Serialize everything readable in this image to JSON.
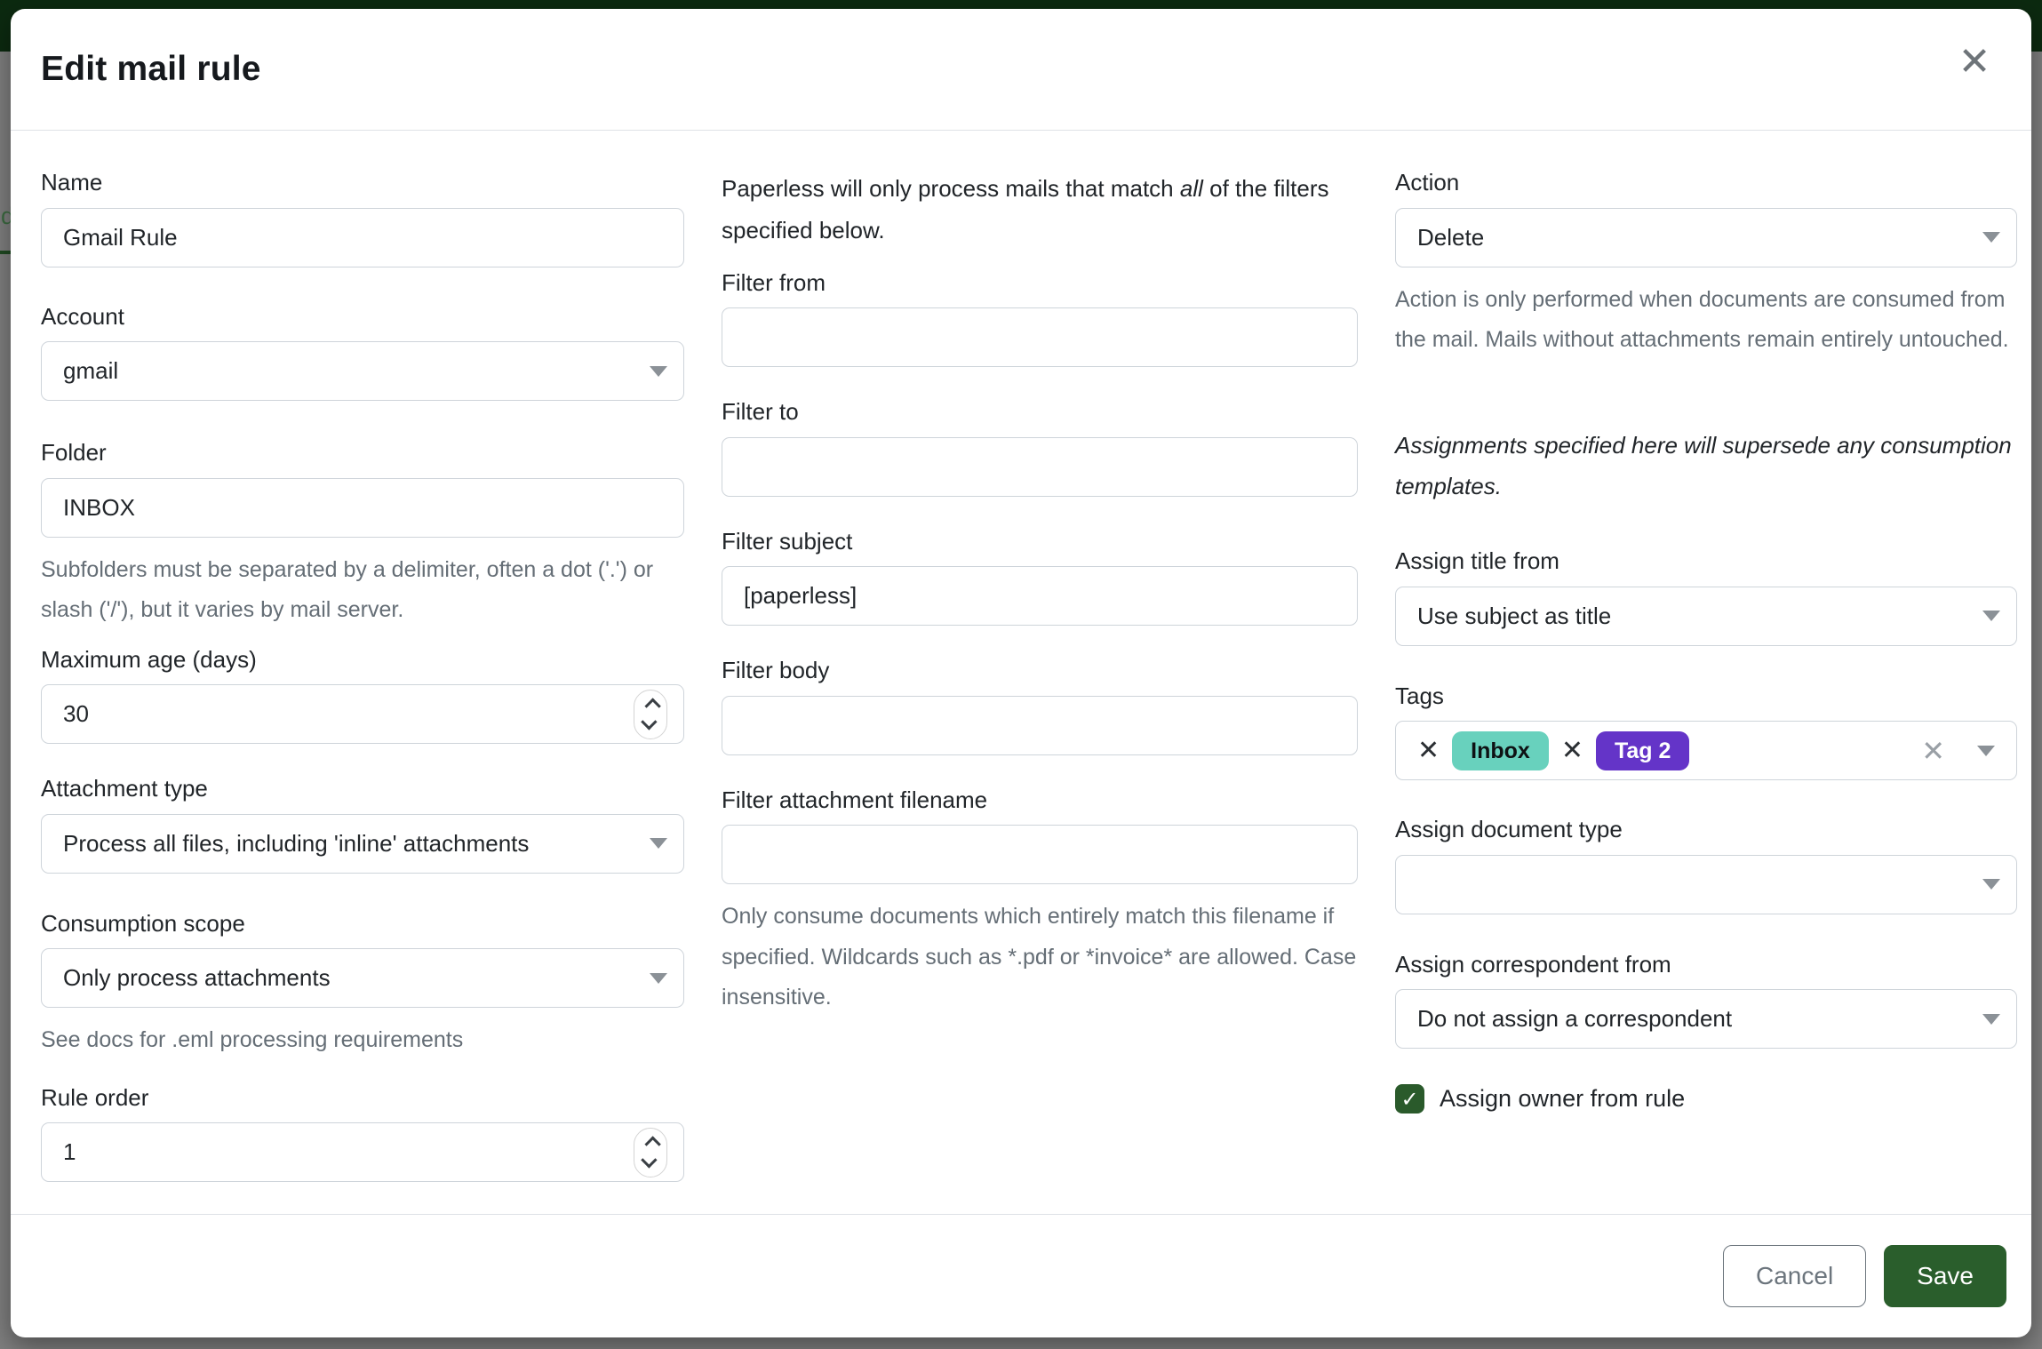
{
  "backdrop": {
    "partial_text": "d"
  },
  "modal": {
    "title": "Edit mail rule",
    "close_icon": "✕"
  },
  "columns": {
    "left": {
      "name": {
        "label": "Name",
        "value": "Gmail Rule"
      },
      "account": {
        "label": "Account",
        "value": "gmail"
      },
      "folder": {
        "label": "Folder",
        "value": "INBOX",
        "help": "Subfolders must be separated by a delimiter, often a dot ('.') or slash ('/'), but it varies by mail server."
      },
      "max_age": {
        "label": "Maximum age (days)",
        "value": "30"
      },
      "attachment_type": {
        "label": "Attachment type",
        "value": "Process all files, including 'inline' attachments"
      },
      "consumption_scope": {
        "label": "Consumption scope",
        "value": "Only process attachments",
        "help": "See docs for .eml processing requirements"
      },
      "rule_order": {
        "label": "Rule order",
        "value": "1"
      }
    },
    "middle": {
      "intro_before": "Paperless will only process mails that match ",
      "intro_italic": "all",
      "intro_after": " of the filters specified below.",
      "filter_from": {
        "label": "Filter from",
        "value": ""
      },
      "filter_to": {
        "label": "Filter to",
        "value": ""
      },
      "filter_subject": {
        "label": "Filter subject",
        "value": "[paperless]"
      },
      "filter_body": {
        "label": "Filter body",
        "value": ""
      },
      "filter_attachment_filename": {
        "label": "Filter attachment filename",
        "value": "",
        "help": "Only consume documents which entirely match this filename if specified. Wildcards such as *.pdf or *invoice* are allowed. Case insensitive."
      }
    },
    "right": {
      "action": {
        "label": "Action",
        "value": "Delete",
        "help": "Action is only performed when documents are consumed from the mail. Mails without attachments remain entirely untouched."
      },
      "assignments_note": "Assignments specified here will supersede any consumption templates.",
      "assign_title_from": {
        "label": "Assign title from",
        "value": "Use subject as title"
      },
      "tags": {
        "label": "Tags",
        "remove_icon": "✕",
        "clear_icon": "✕",
        "chips": [
          {
            "text": "Inbox",
            "color": "#68d1bd",
            "style": "background:#68d1bd;color:#0e1214"
          },
          {
            "text": "Tag 2",
            "color": "#6434c8",
            "style": "background:#6434c8;color:#ffffff"
          }
        ]
      },
      "assign_document_type": {
        "label": "Assign document type",
        "value": ""
      },
      "assign_correspondent_from": {
        "label": "Assign correspondent from",
        "value": "Do not assign a correspondent"
      },
      "assign_owner": {
        "label": "Assign owner from rule",
        "checked": true,
        "check_icon": "✓"
      }
    }
  },
  "footer": {
    "cancel_label": "Cancel",
    "save_label": "Save"
  },
  "colors": {
    "save_green": "#2a5e2c",
    "checkbox_green": "#2a5a2b",
    "backdrop_header_green": "#0c2a10",
    "chip_inbox_teal": "#68d1bd",
    "chip_tag2_purple": "#6434c8"
  }
}
